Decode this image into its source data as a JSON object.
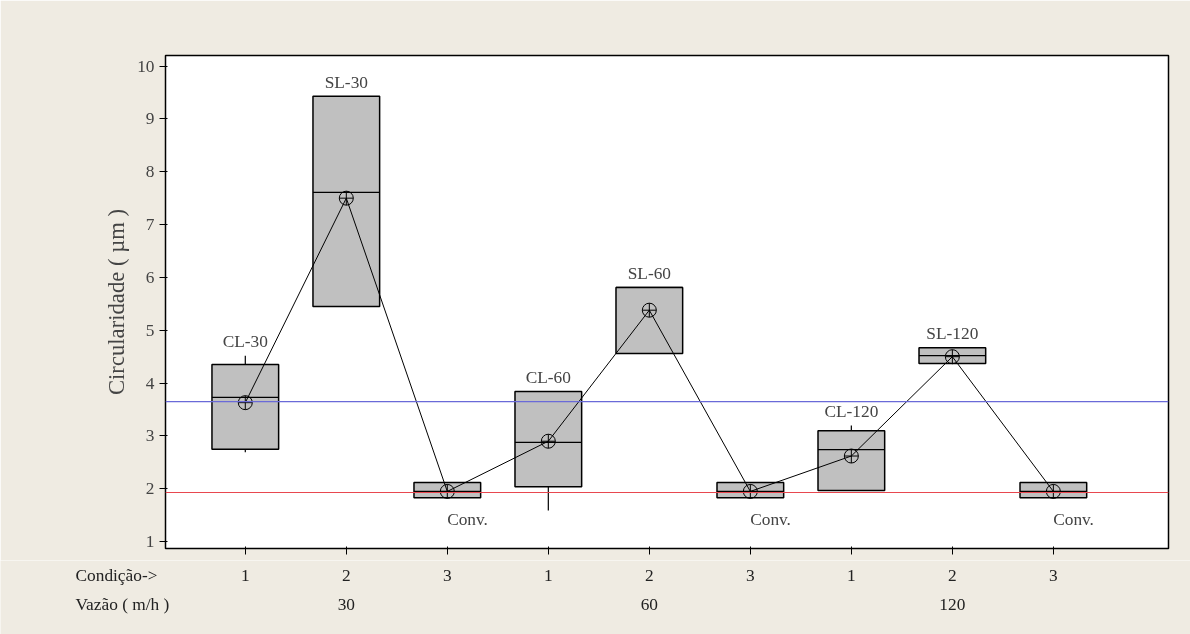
{
  "chart_data": {
    "type": "box",
    "categories": [
      "1",
      "2",
      "3",
      "1",
      "2",
      "3",
      "1",
      "2",
      "3"
    ],
    "boxes": [
      {
        "low": 2.69,
        "q1": 2.75,
        "median": 3.73,
        "q3": 4.35,
        "high": 4.52
      },
      {
        "low": 5.45,
        "q1": 5.45,
        "median": 7.61,
        "q3": 9.43,
        "high": 9.43
      },
      {
        "low": 1.83,
        "q1": 1.83,
        "median": 1.95,
        "q3": 2.12,
        "high": 2.12
      },
      {
        "low": 1.59,
        "q1": 2.04,
        "median": 2.88,
        "q3": 3.84,
        "high": 3.84
      },
      {
        "low": 4.56,
        "q1": 4.56,
        "median": 5.81,
        "q3": 5.81,
        "high": 5.81
      },
      {
        "low": 1.83,
        "q1": 1.83,
        "median": 1.95,
        "q3": 2.12,
        "high": 2.12
      },
      {
        "low": 1.97,
        "q1": 1.97,
        "median": 2.74,
        "q3": 3.1,
        "high": 3.2
      },
      {
        "low": 4.37,
        "q1": 4.37,
        "median": 4.52,
        "q3": 4.67,
        "high": 4.67
      },
      {
        "low": 1.83,
        "q1": 1.83,
        "median": 1.95,
        "q3": 2.12,
        "high": 2.12
      }
    ],
    "colors": [
      "#c0c0c0",
      "#c0c0c0",
      "#c0c0c0",
      "#c0c0c0",
      "#c0c0c0",
      "#c0c0c0",
      "#c0c0c0",
      "#c0c0c0",
      "#c0c0c0"
    ],
    "series": [
      {
        "type": "line",
        "color": "#000000",
        "values": [
          3.63,
          7.5,
          1.95,
          2.9,
          5.38,
          1.95,
          2.62,
          4.5,
          1.95
        ]
      }
    ],
    "ylabel": "Circularidade ( µm )",
    "xlabel": "Condição->",
    "x2label": "Vazão ( m/h )",
    "ylim": [
      0.87,
      10.2
    ],
    "yticks": [
      1,
      2,
      3,
      4,
      5,
      6,
      7,
      8,
      9,
      10
    ],
    "ref_lines": [
      {
        "axis": "y",
        "value": 3.65,
        "color": "#6a6ad8"
      },
      {
        "axis": "y",
        "value": 1.93,
        "color": "#e8474f"
      }
    ],
    "annotations": [
      "CL-30",
      "SL-30",
      "Conv.",
      "CL-60",
      "SL-60",
      "Conv.",
      "CL-120",
      "SL-120",
      "Conv.",
      "30",
      "60",
      "120"
    ],
    "grid": false,
    "marker": "circle"
  }
}
